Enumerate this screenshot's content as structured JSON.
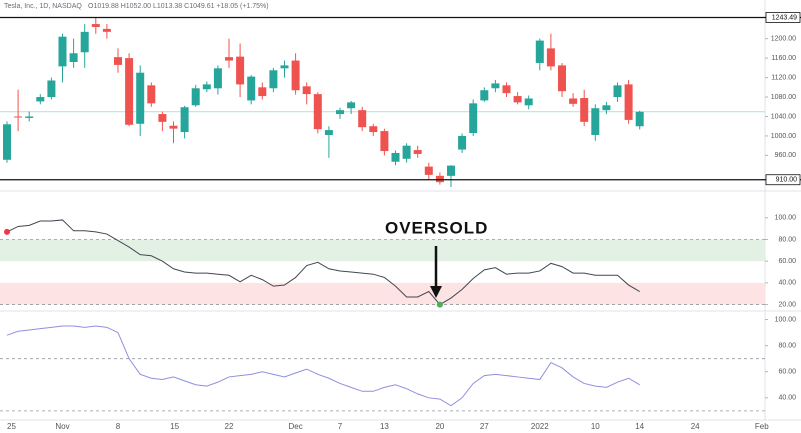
{
  "x_axis_labels": [
    "25",
    "Nov",
    "8",
    "15",
    "22",
    "Dec",
    "7",
    "13",
    "20",
    "27",
    "2022",
    "10",
    "14",
    "24",
    "Feb"
  ],
  "annotation": "OVERSOLD",
  "chart_data": [
    {
      "type": "candlestick",
      "title": "Tesla, Inc., 1D, NASDAQ",
      "ohlc_text": "O1019.88 H1052.00 L1013.38 C1049.61 +18.05 (+1.75%)",
      "up_color": "#26a69a",
      "down_color": "#ef5350",
      "open": [
        951,
        1040,
        1037,
        1071,
        1080,
        1143,
        1152,
        1172,
        1230,
        1220,
        1162,
        1160,
        1025,
        1104,
        1045,
        1021,
        1008,
        1063,
        1096,
        1098,
        1162,
        1163,
        1073,
        1100,
        1098,
        1139,
        1155,
        1102,
        1086,
        1002,
        1045,
        1057,
        1053,
        1020,
        1010,
        947,
        953,
        971,
        937,
        918,
        918,
        972,
        1006,
        1073,
        1098,
        1104,
        1082,
        1063,
        1150,
        1180,
        1145,
        1077,
        1078,
        1002,
        1053,
        1080,
        1106,
        1019.88
      ],
      "high": [
        1030,
        1095,
        1050,
        1086,
        1120,
        1210,
        1200,
        1230,
        1243,
        1230,
        1180,
        1170,
        1145,
        1110,
        1050,
        1030,
        1062,
        1105,
        1112,
        1145,
        1200,
        1190,
        1125,
        1110,
        1140,
        1155,
        1170,
        1110,
        1090,
        1020,
        1058,
        1072,
        1060,
        1025,
        1015,
        970,
        985,
        980,
        945,
        925,
        940,
        1005,
        1075,
        1100,
        1115,
        1110,
        1090,
        1083,
        1200,
        1210,
        1150,
        1088,
        1095,
        1065,
        1070,
        1110,
        1115,
        1052
      ],
      "low": [
        945,
        1010,
        1030,
        1065,
        1075,
        1110,
        1140,
        1140,
        1210,
        1200,
        1130,
        1020,
        1000,
        1060,
        1010,
        985,
        995,
        1060,
        1090,
        1085,
        1140,
        1080,
        1065,
        1075,
        1090,
        1120,
        1085,
        1065,
        1005,
        955,
        1035,
        1045,
        1010,
        1000,
        960,
        940,
        945,
        955,
        910,
        900,
        895,
        965,
        1000,
        1070,
        1090,
        1080,
        1065,
        1055,
        1135,
        1135,
        1080,
        1060,
        1020,
        990,
        1045,
        1070,
        1025,
        1013.38
      ],
      "close": [
        1024,
        1038,
        1040,
        1080,
        1114,
        1204,
        1170,
        1214,
        1224,
        1214,
        1146,
        1023,
        1130,
        1067,
        1029,
        1015,
        1059,
        1098,
        1106,
        1139,
        1155,
        1106,
        1122,
        1082,
        1135,
        1145,
        1094,
        1086,
        1014,
        1012,
        1053,
        1069,
        1018,
        1008,
        969,
        965,
        980,
        963,
        920,
        905,
        939,
        1000,
        1067,
        1094,
        1108,
        1088,
        1069,
        1077,
        1196,
        1143,
        1092,
        1066,
        1029,
        1057,
        1063,
        1104,
        1033,
        1049.61
      ],
      "last_line_color": "#b2dfdb",
      "hlines": [
        {
          "value": 1243.49,
          "label": "1243.49"
        },
        {
          "value": 910,
          "label": "910.00"
        }
      ],
      "ylim": [
        893,
        1263
      ],
      "yticks": [
        {
          "value": 1200,
          "label": "1200.00"
        },
        {
          "value": 1160,
          "label": "1160.00"
        },
        {
          "value": 1120,
          "label": "1120.00"
        },
        {
          "value": 1080,
          "label": "1080.00"
        },
        {
          "value": 1040,
          "label": "1040.00"
        },
        {
          "value": 1000,
          "label": "1000.00"
        },
        {
          "value": 960,
          "label": "960.00"
        }
      ]
    },
    {
      "type": "line",
      "color": "#434651",
      "values": [
        87,
        92,
        93,
        97,
        97,
        98,
        88,
        88,
        87,
        85,
        79,
        73,
        66,
        65,
        60,
        53,
        50,
        49,
        49,
        48,
        47,
        41,
        47,
        43,
        37,
        38,
        45,
        56,
        59,
        53,
        51,
        50,
        49,
        48,
        45,
        37,
        27,
        27,
        32,
        20,
        26,
        34,
        44,
        52,
        54,
        48,
        49,
        49,
        51,
        58,
        55,
        49,
        49,
        47,
        47,
        47,
        38,
        32
      ],
      "bands": [
        {
          "from": 60,
          "to": 80,
          "color": "#e3f1e4"
        },
        {
          "from": 20,
          "to": 40,
          "color": "#fde3e3"
        }
      ],
      "levels": [
        80,
        20
      ],
      "highlight": [
        {
          "index": 0,
          "color": "#f23645"
        },
        {
          "index": 39,
          "color": "#4caf50"
        }
      ],
      "ylim": [
        15,
        121
      ],
      "yticks": [
        {
          "value": 100,
          "label": "100.00"
        },
        {
          "value": 80,
          "label": "80.00"
        },
        {
          "value": 60,
          "label": "60.00"
        },
        {
          "value": 40,
          "label": "40.00"
        },
        {
          "value": 20,
          "label": "20.00"
        }
      ]
    },
    {
      "type": "line",
      "color": "#8f8fe0",
      "values": [
        88,
        91,
        92,
        93,
        94,
        95,
        95,
        94,
        95,
        94,
        90,
        70,
        58,
        55,
        54,
        56,
        53,
        50,
        49,
        52,
        56,
        57,
        58,
        60,
        58,
        56,
        59,
        62,
        58,
        55,
        51,
        48,
        45,
        45,
        48,
        50,
        47,
        43,
        40,
        39,
        34,
        40,
        51,
        57,
        58,
        57,
        56,
        55,
        54,
        67,
        63,
        56,
        51,
        49,
        48,
        52,
        55,
        50
      ],
      "levels": [
        70,
        30
      ],
      "ylim": [
        23,
        105
      ],
      "yticks": [
        {
          "value": 100,
          "label": "100.00"
        },
        {
          "value": 80,
          "label": "80.00"
        },
        {
          "value": 60,
          "label": "60.00"
        },
        {
          "value": 40,
          "label": "40.00"
        }
      ]
    }
  ]
}
